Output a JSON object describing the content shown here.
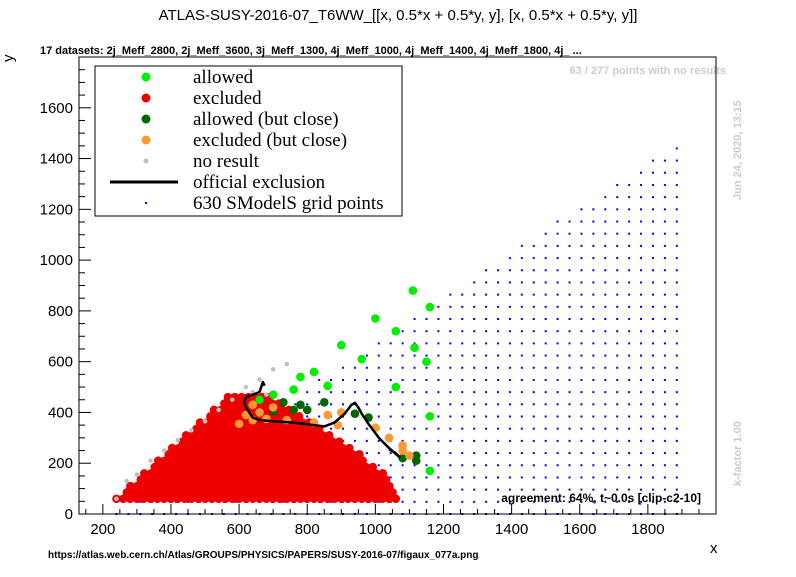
{
  "chart_data": {
    "type": "scatter",
    "title": "ATLAS-SUSY-2016-07_T6WW_[[x, 0.5*x + 0.5*y, y], [x, 0.5*x + 0.5*y, y]]",
    "subtitle": "17 datasets: 2j_Meff_2800, 2j_Meff_3600, 3j_Meff_1300, 4j_Meff_1000, 4j_Meff_1400, 4j_Meff_1800, 4j_ ...",
    "xlabel": "x",
    "ylabel": "y",
    "xlim": [
      130,
      2000
    ],
    "ylim": [
      0,
      1800
    ],
    "xticks": [
      200,
      400,
      600,
      800,
      1000,
      1200,
      1400,
      1600,
      1800
    ],
    "yticks": [
      0,
      200,
      400,
      600,
      800,
      1000,
      1200,
      1400,
      1600
    ],
    "legend_position": "top-left",
    "legend": [
      {
        "label": "allowed",
        "marker": "circle",
        "color": "#00ee00"
      },
      {
        "label": "excluded",
        "marker": "circle",
        "color": "#ee0000"
      },
      {
        "label": "allowed (but close)",
        "marker": "circle",
        "color": "#006600"
      },
      {
        "label": "excluded (but close)",
        "marker": "circle",
        "color": "#ff9933"
      },
      {
        "label": "no result",
        "marker": "circle",
        "color": "#c0c0c0"
      },
      {
        "label": "official exclusion",
        "marker": "line",
        "color": "#000000"
      },
      {
        "label": "630 SModelS grid points",
        "marker": "dot",
        "color": "#0000ff"
      }
    ],
    "colors": {
      "allowed": "#00ee00",
      "excluded": "#ee0000",
      "allowed_close": "#006600",
      "excluded_close": "#ff9933",
      "no_result": "#c0c0c0",
      "grid_points": "#0000ff",
      "exclusion": "#000000"
    },
    "series": [
      {
        "name": "allowed",
        "points": [
          [
            1110,
            880
          ],
          [
            1160,
            815
          ],
          [
            1000,
            770
          ],
          [
            1060,
            720
          ],
          [
            900,
            665
          ],
          [
            1115,
            655
          ],
          [
            960,
            610
          ],
          [
            1150,
            600
          ],
          [
            820,
            560
          ],
          [
            780,
            540
          ],
          [
            1060,
            500
          ],
          [
            860,
            505
          ],
          [
            760,
            490
          ],
          [
            700,
            470
          ],
          [
            660,
            450
          ],
          [
            1160,
            385
          ],
          [
            1160,
            170
          ]
        ]
      },
      {
        "name": "allowed (but close)",
        "points": [
          [
            730,
            440
          ],
          [
            780,
            430
          ],
          [
            850,
            440
          ],
          [
            760,
            410
          ],
          [
            800,
            410
          ],
          [
            700,
            405
          ],
          [
            940,
            395
          ],
          [
            980,
            380
          ],
          [
            1080,
            220
          ],
          [
            1120,
            230
          ],
          [
            1120,
            210
          ]
        ]
      },
      {
        "name": "excluded (but close)",
        "points": [
          [
            640,
            430
          ],
          [
            700,
            420
          ],
          [
            620,
            390
          ],
          [
            660,
            400
          ],
          [
            600,
            355
          ],
          [
            640,
            370
          ],
          [
            680,
            375
          ],
          [
            740,
            370
          ],
          [
            900,
            400
          ],
          [
            860,
            390
          ],
          [
            820,
            360
          ],
          [
            890,
            350
          ],
          [
            1000,
            340
          ],
          [
            1040,
            300
          ],
          [
            1080,
            270
          ],
          [
            1080,
            250
          ],
          [
            1100,
            230
          ]
        ]
      },
      {
        "name": "no result",
        "points": [
          [
            240,
            60
          ],
          [
            270,
            130
          ],
          [
            300,
            155
          ],
          [
            340,
            210
          ],
          [
            380,
            250
          ],
          [
            420,
            290
          ],
          [
            460,
            330
          ],
          [
            500,
            365
          ],
          [
            540,
            410
          ],
          [
            580,
            450
          ],
          [
            620,
            500
          ],
          [
            660,
            530
          ],
          [
            700,
            570
          ],
          [
            740,
            590
          ],
          [
            680,
            470
          ],
          [
            640,
            480
          ]
        ]
      }
    ],
    "excluded_region": {
      "x_min": 240,
      "x_step": 20,
      "y_step": 25,
      "edge_slope": 1.1,
      "x_max_by_row": [
        1065,
        1060,
        1055,
        1040,
        1030,
        1010,
        980,
        960,
        930,
        900,
        870,
        840,
        810,
        780,
        760,
        720,
        700
      ]
    },
    "grid": {
      "x_start": 240,
      "x_end": 1900,
      "x_step": 35,
      "y_step": 48,
      "slope": 0.89
    },
    "official_exclusion": [
      [
        620,
        420
      ],
      [
        630,
        400
      ],
      [
        640,
        380
      ],
      [
        660,
        370
      ],
      [
        700,
        365
      ],
      [
        740,
        362
      ],
      [
        780,
        357
      ],
      [
        820,
        350
      ],
      [
        850,
        345
      ],
      [
        880,
        360
      ],
      [
        910,
        395
      ],
      [
        930,
        430
      ],
      [
        940,
        438
      ],
      [
        950,
        420
      ],
      [
        960,
        395
      ],
      [
        980,
        355
      ],
      [
        1010,
        300
      ],
      [
        1040,
        260
      ],
      [
        1070,
        225
      ],
      [
        1060,
        240
      ],
      [
        1040,
        255
      ]
    ],
    "official_exclusion_top": [
      [
        620,
        420
      ],
      [
        615,
        440
      ],
      [
        620,
        460
      ],
      [
        640,
        470
      ],
      [
        660,
        480
      ],
      [
        670,
        520
      ],
      [
        675,
        505
      ]
    ]
  },
  "annotations": {
    "no_results": "63 / 277 points with no results",
    "date": "Jun 24, 2020, 13:15",
    "kfactor": "k-factor 1.00",
    "agreement": "agreement: 64%, t~0.0s [clip-c2-10]",
    "url": "https://atlas.web.cern.ch/Atlas/GROUPS/PHYSICS/PAPERS/SUSY-2016-07/figaux_077a.png"
  }
}
